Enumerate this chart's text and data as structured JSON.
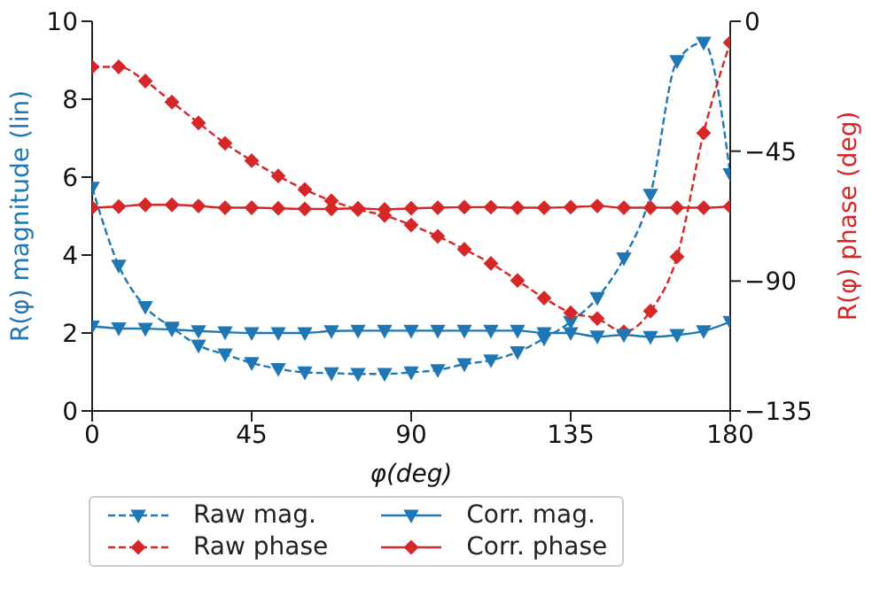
{
  "chart_data": {
    "type": "line",
    "xlabel": "φ(deg)",
    "ylabel": "R(φ) magnitude (lin)",
    "y2label": "R(φ) phase (deg)",
    "x": [
      0,
      7.5,
      15,
      22.5,
      30,
      37.5,
      45,
      52.5,
      60,
      67.5,
      75,
      82.5,
      90,
      97.5,
      105,
      112.5,
      120,
      127.5,
      135,
      142.5,
      150,
      157.5,
      165,
      172.5,
      180
    ],
    "xlim": [
      0,
      180
    ],
    "xticks": [
      0,
      45,
      90,
      135,
      180
    ],
    "ylim": [
      0,
      10
    ],
    "yticks": [
      0,
      2,
      4,
      6,
      8,
      10
    ],
    "y2lim": [
      -135,
      0
    ],
    "y2ticks": [
      -135,
      -90,
      -45,
      0
    ],
    "legend": "bottom",
    "series": [
      {
        "name": "Raw mag.",
        "color": "#1f77b4",
        "marker": "triangle",
        "line_style": "dashed",
        "values": [
          5.73,
          3.73,
          2.67,
          2.14,
          1.68,
          1.45,
          1.23,
          1.08,
          0.99,
          0.97,
          0.95,
          0.95,
          0.99,
          1.05,
          1.2,
          1.3,
          1.51,
          1.86,
          2.29,
          2.9,
          3.92,
          5.55,
          8.98,
          9.45,
          6.08
        ]
      },
      {
        "name": "Raw phase",
        "color": "#d62728",
        "marker": "diamond",
        "line_style": "dashed",
        "axis": "y2",
        "values": [
          -15.8,
          -15.8,
          -20.7,
          -28,
          -35.2,
          -42.3,
          -48.3,
          -53.6,
          -58.3,
          -62.2,
          -65.2,
          -67.3,
          -70.6,
          -74.5,
          -79,
          -83.9,
          -89.8,
          -95.9,
          -101,
          -103,
          -107.6,
          -100.4,
          -81.6,
          -38.7,
          -7.4
        ]
      },
      {
        "name": "Corr. mag.",
        "color": "#1f77b4",
        "marker": "triangle",
        "line_style": "solid",
        "values": [
          2.17,
          2.12,
          2.11,
          2.09,
          2.05,
          2.02,
          2.0,
          2.0,
          2.0,
          2.05,
          2.06,
          2.06,
          2.06,
          2.06,
          2.06,
          2.06,
          2.06,
          2.0,
          2.0,
          1.91,
          1.95,
          1.9,
          1.95,
          2.05,
          2.29
        ]
      },
      {
        "name": "Corr. phase",
        "color": "#d62728",
        "marker": "diamond",
        "line_style": "solid",
        "axis": "y2",
        "values": [
          -64.6,
          -64.2,
          -63.6,
          -63.6,
          -64,
          -64.6,
          -64.6,
          -64.8,
          -65,
          -65,
          -64.8,
          -65.2,
          -64.8,
          -64.6,
          -64.4,
          -64.4,
          -64.6,
          -64.6,
          -64.4,
          -64,
          -64.6,
          -64.6,
          -64.6,
          -64.6,
          -64.2
        ]
      }
    ]
  }
}
